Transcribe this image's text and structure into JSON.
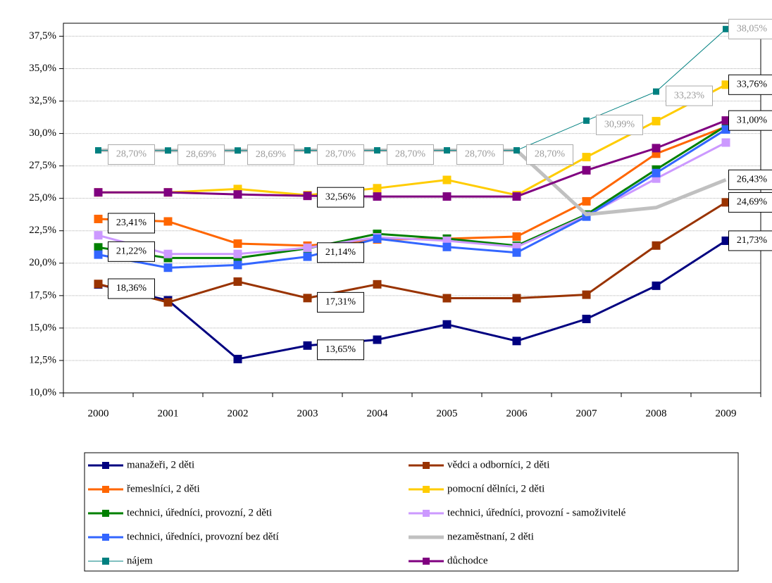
{
  "chart_data": {
    "type": "line",
    "categories": [
      "2000",
      "2001",
      "2002",
      "2003",
      "2004",
      "2005",
      "2006",
      "2007",
      "2008",
      "2009"
    ],
    "ylim": [
      10,
      38.5
    ],
    "yticks": [
      {
        "value": 10,
        "label": "10,0%"
      },
      {
        "value": 12.5,
        "label": "12,5%"
      },
      {
        "value": 15,
        "label": "15,0%"
      },
      {
        "value": 17.5,
        "label": "17,5%"
      },
      {
        "value": 20,
        "label": "20,0%"
      },
      {
        "value": 22.5,
        "label": "22,5%"
      },
      {
        "value": 25,
        "label": "25,0%"
      },
      {
        "value": 27.5,
        "label": "27,5%"
      },
      {
        "value": 30,
        "label": "30,0%"
      },
      {
        "value": 32.5,
        "label": "32,5%"
      },
      {
        "value": 35,
        "label": "35,0%"
      },
      {
        "value": 37.5,
        "label": "37,5%"
      }
    ],
    "grid": true,
    "legend": "bottom",
    "series": [
      {
        "name": "manažeři, 2 děti",
        "color": "#000080",
        "line_width": 3,
        "values": [
          18.36,
          17.14,
          12.61,
          13.65,
          14.1,
          15.28,
          14.0,
          15.7,
          18.26,
          21.73
        ],
        "value_labels": [
          "18,36%",
          null,
          null,
          "13,65%",
          null,
          null,
          null,
          null,
          null,
          "21,73%"
        ]
      },
      {
        "name": "vědci a odborníci, 2 děti",
        "color": "#993300",
        "line_width": 3,
        "values": [
          18.4,
          16.98,
          18.58,
          17.31,
          18.37,
          17.3,
          17.3,
          17.57,
          21.36,
          24.69
        ],
        "value_labels": [
          null,
          null,
          null,
          "17,31%",
          null,
          null,
          null,
          null,
          null,
          "24,69%"
        ]
      },
      {
        "name": "řemeslníci, 2 děti",
        "color": "#ff6600",
        "line_width": 3,
        "values": [
          23.41,
          23.22,
          21.51,
          21.35,
          21.83,
          21.89,
          22.05,
          24.77,
          28.44,
          30.52
        ],
        "value_labels": [
          "23,41%",
          null,
          null,
          null,
          null,
          null,
          null,
          null,
          null,
          null
        ]
      },
      {
        "name": "pomocní dělníci, 2 děti",
        "color": "#ffcc00",
        "line_width": 3,
        "values": [
          25.46,
          25.46,
          25.72,
          25.25,
          25.78,
          26.42,
          25.25,
          28.18,
          30.95,
          33.76
        ],
        "value_labels": [
          null,
          null,
          null,
          null,
          null,
          null,
          null,
          null,
          null,
          "33,76%"
        ]
      },
      {
        "name": "technici, úředníci, provozní, 2 děti",
        "color": "#008000",
        "line_width": 3,
        "values": [
          21.22,
          20.4,
          20.4,
          21.14,
          22.26,
          21.89,
          21.35,
          23.75,
          27.22,
          30.58
        ],
        "value_labels": [
          "21,22%",
          null,
          null,
          "21,14%",
          null,
          null,
          null,
          null,
          null,
          null
        ]
      },
      {
        "name": "technici, úředníci, provozní - samoživitelé",
        "color": "#cc99ff",
        "line_width": 3,
        "values": [
          22.15,
          20.71,
          20.71,
          21.19,
          21.99,
          21.73,
          21.25,
          23.65,
          26.52,
          29.3
        ]
      },
      {
        "name": "technici, úředníci, provozní bez dětí",
        "color": "#3366ff",
        "line_width": 3,
        "values": [
          20.66,
          19.65,
          19.86,
          20.5,
          21.89,
          21.25,
          20.82,
          23.59,
          26.95,
          30.31
        ]
      },
      {
        "name": "nezaměstnaní, 2 děti",
        "color": "#c0c0c0",
        "line_width": 5,
        "values": [
          28.7,
          28.69,
          28.69,
          28.7,
          28.7,
          28.7,
          28.7,
          23.75,
          24.29,
          26.43
        ],
        "value_labels": [
          null,
          null,
          null,
          null,
          null,
          null,
          null,
          null,
          null,
          "26,43%"
        ]
      },
      {
        "name": "nájem",
        "color": "#008080",
        "line_width": 1,
        "values": [
          28.7,
          28.69,
          28.69,
          28.7,
          28.7,
          28.7,
          28.7,
          30.99,
          33.23,
          38.05
        ],
        "value_labels": [
          "28,70%",
          "28,69%",
          "28,69%",
          "28,70%",
          "28,70%",
          "28,70%",
          "28,70%",
          "30,99%",
          "33,23%",
          "38,05%"
        ],
        "label_color": "#999999"
      },
      {
        "name": "důchodce",
        "color": "#800080",
        "line_width": 3,
        "values": [
          25.46,
          25.46,
          25.3,
          25.19,
          25.14,
          25.14,
          25.14,
          27.16,
          28.87,
          31.0
        ],
        "value_labels": [
          null,
          null,
          null,
          null,
          null,
          null,
          null,
          null,
          null,
          "31,00%"
        ]
      }
    ],
    "annotations": [
      "32,56%"
    ]
  }
}
